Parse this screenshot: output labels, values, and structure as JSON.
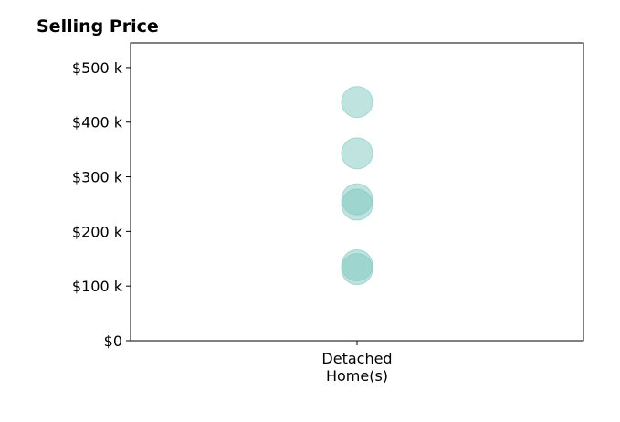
{
  "chart_data": {
    "type": "scatter",
    "title": "Selling Price",
    "xlabel": "",
    "ylabel": "",
    "categories": [
      [
        "Detached",
        "Home(s)"
      ]
    ],
    "series": [
      {
        "category_index": 0,
        "values": [
          437000,
          343000,
          259000,
          249000,
          138000,
          131000
        ]
      }
    ],
    "ylim": [
      0,
      545000
    ],
    "yticks": [
      0,
      100000,
      200000,
      300000,
      400000,
      500000
    ],
    "ytick_labels": [
      "$0",
      "$100 k",
      "$200 k",
      "$300 k",
      "$400 k",
      "$500 k"
    ],
    "marker_color": "#7fc7bf",
    "marker_opacity": 0.5,
    "grid": false,
    "legend": "none"
  }
}
